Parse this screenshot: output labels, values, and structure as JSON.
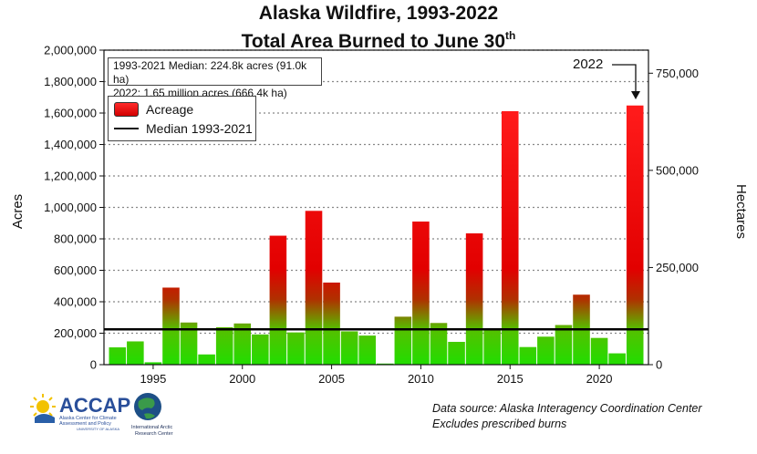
{
  "title_line1": "Alaska Wildfire, 1993-2022",
  "title_line2": "Total Area Burned to June 30",
  "title_sup": "th",
  "info_line1": "1993-2021 Median: 224.8k acres (91.0k ha)",
  "info_line2": "2022: 1.65 million acres (666.4k ha)",
  "legend_acreage": "Acreage",
  "legend_median": "Median 1993-2021",
  "annotation_2022": "2022",
  "source_line1": "Data source: Alaska Interagency Coordination Center",
  "source_line2": "Excludes prescribed burns",
  "logo": {
    "name": "ACCAP",
    "sub1": "Alaska Center for Climate",
    "sub2": "Assessment and Policy",
    "sub3": "UNIVERSITY OF ALASKA",
    "partner1": "International Arctic",
    "partner2": "Research Center"
  },
  "colors": {
    "bar_top": "#ff1a1a",
    "bar_bottom": "#22dd00",
    "median_line": "#000000",
    "grid": "#888888"
  },
  "chart_data": {
    "type": "bar",
    "title": "Alaska Wildfire, 1993-2022 Total Area Burned to June 30th",
    "xlabel": "",
    "ylabel": "Acres",
    "y2label": "Hectares",
    "categories": [
      1993,
      1994,
      1995,
      1996,
      1997,
      1998,
      1999,
      2000,
      2001,
      2002,
      2003,
      2004,
      2005,
      2006,
      2007,
      2008,
      2009,
      2010,
      2011,
      2012,
      2013,
      2014,
      2015,
      2016,
      2017,
      2018,
      2019,
      2020,
      2021,
      2022
    ],
    "series": [
      {
        "name": "Acreage",
        "values": [
          110000,
          148000,
          15000,
          490000,
          268000,
          65000,
          238000,
          262000,
          192000,
          820000,
          205000,
          978000,
          522000,
          212000,
          185000,
          7000,
          305000,
          910000,
          265000,
          145000,
          835000,
          225000,
          1612000,
          112000,
          178000,
          252000,
          445000,
          170000,
          72000,
          1648000
        ]
      }
    ],
    "median": {
      "name": "Median 1993-2021",
      "value": 224800
    },
    "ylim": [
      0,
      2000000
    ],
    "x_tick_labels": [
      "1995",
      "2000",
      "2005",
      "2010",
      "2015",
      "2020"
    ],
    "y_tick_labels": [
      "0",
      "200,000",
      "400,000",
      "600,000",
      "800,000",
      "1,000,000",
      "1,200,000",
      "1,400,000",
      "1,600,000",
      "1,800,000",
      "2,000,000"
    ],
    "y2_tick_labels": [
      "0",
      "250,000",
      "500,000",
      "750,000"
    ],
    "y2_ticks": [
      0,
      250000,
      500000,
      750000
    ],
    "hectares_per_acre": 0.404686,
    "grid": true,
    "legend_position": "top-left"
  }
}
